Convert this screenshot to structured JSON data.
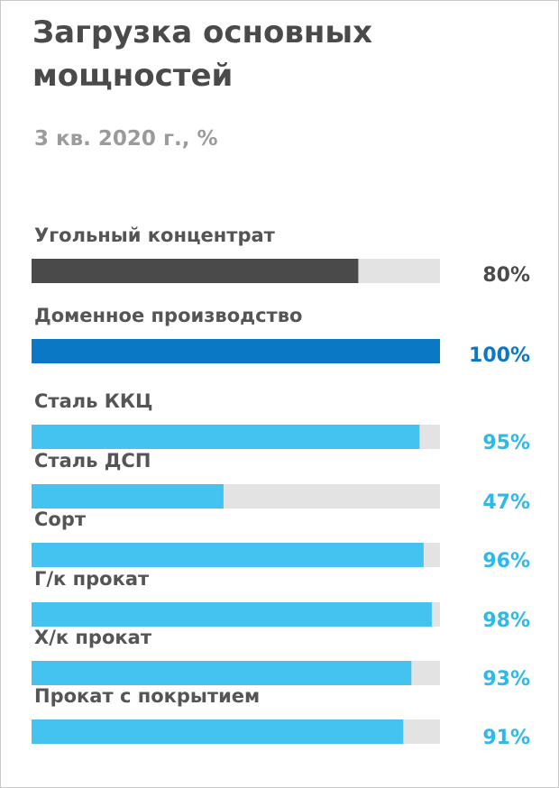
{
  "title": "Загрузка основных мощностей",
  "subtitle": "3 кв. 2020 г., %",
  "colors": {
    "track": "#e3e3e3",
    "dark": "#4a4a4a",
    "dark_text": "#4a4a4a",
    "blue": "#0a78c4",
    "blue_text": "#0a78c4",
    "light_blue": "#45c3f0",
    "light_blue_text": "#2db9ea"
  },
  "chart_data": {
    "type": "bar",
    "orientation": "horizontal",
    "categories": [
      "Угольный концентрат",
      "Доменное производство",
      "Сталь ККЦ",
      "Сталь ДСП",
      "Сорт",
      "Г/к прокат",
      "Х/к прокат",
      "Прокат с покрытием"
    ],
    "values": [
      80,
      100,
      95,
      47,
      96,
      98,
      93,
      91
    ],
    "value_labels": [
      "80%",
      "100%",
      "95%",
      "47%",
      "96%",
      "98%",
      "93%",
      "91%"
    ],
    "bar_colors": [
      "dark",
      "blue",
      "light_blue",
      "light_blue",
      "light_blue",
      "light_blue",
      "light_blue",
      "light_blue"
    ],
    "xlim": [
      0,
      100
    ],
    "grid": false,
    "legend": "none"
  }
}
